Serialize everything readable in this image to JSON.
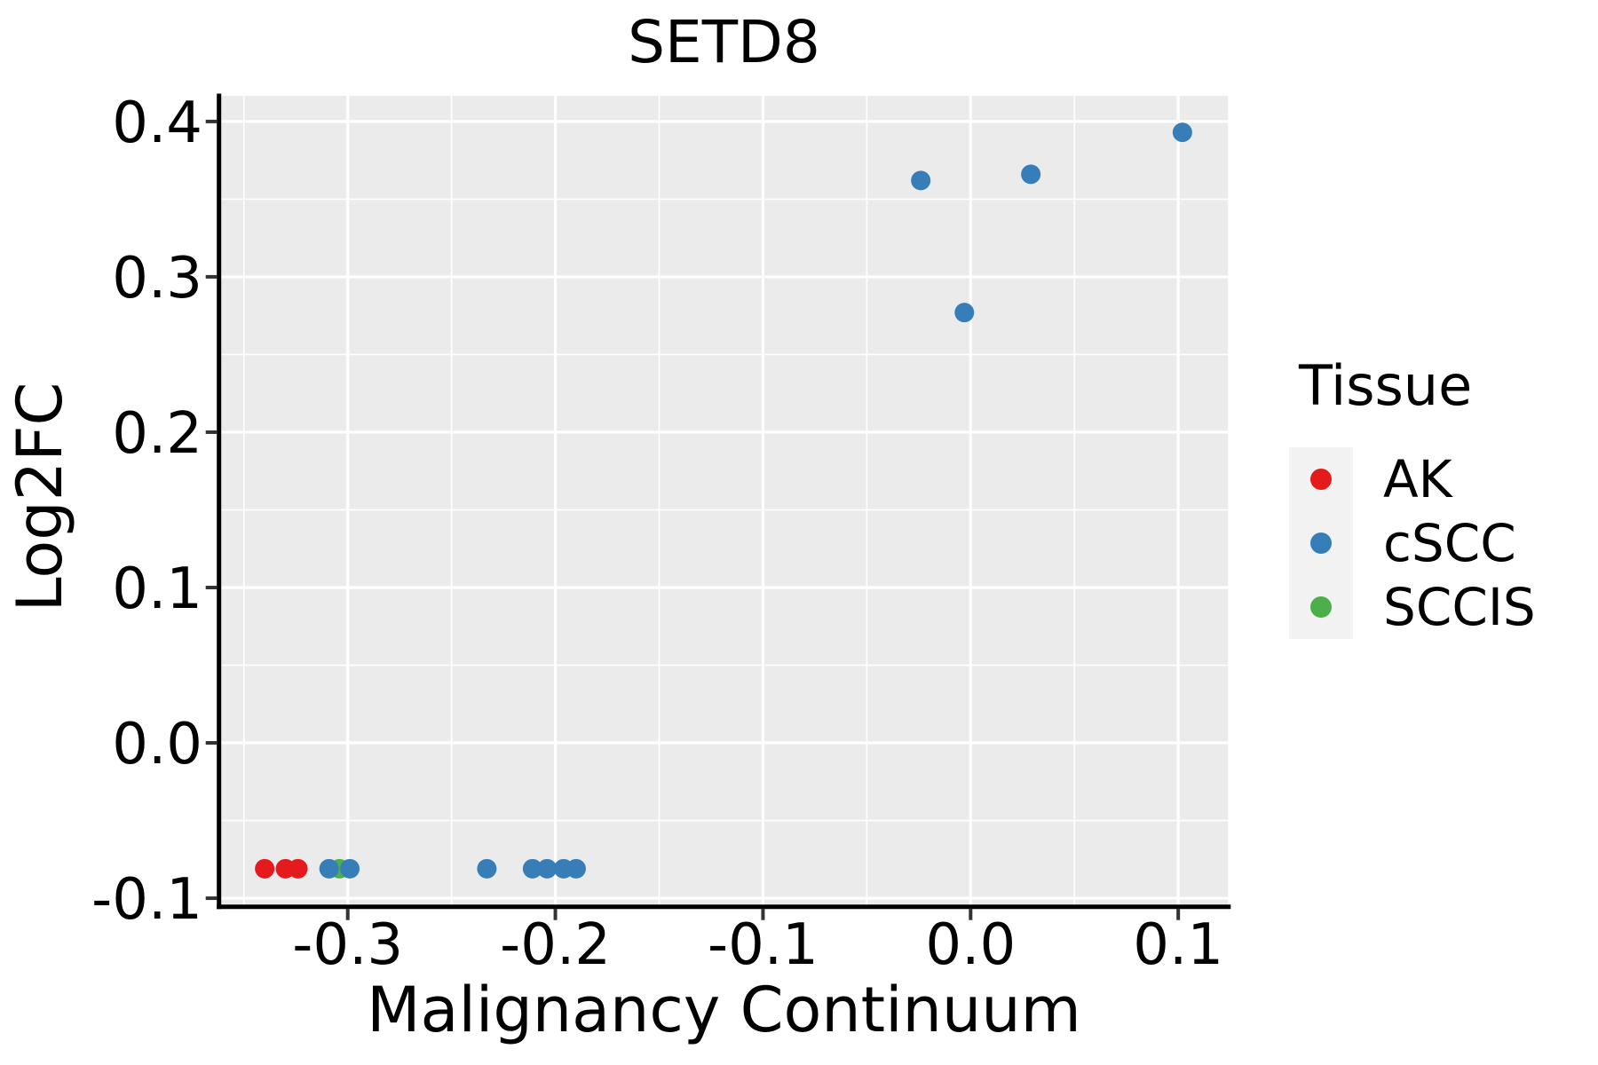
{
  "title": "SETD8",
  "axes": {
    "x": {
      "label": "Malignancy Continuum",
      "tick_values": [
        -0.3,
        -0.2,
        -0.1,
        0.0,
        0.1
      ],
      "tick_labels": [
        "-0.3",
        "-0.2",
        "-0.1",
        "0.0",
        "0.1"
      ],
      "minor_tick_values": [
        -0.35,
        -0.25,
        -0.15,
        -0.05,
        0.05
      ]
    },
    "y": {
      "label": "Log2FC",
      "tick_values": [
        0.4,
        0.3,
        0.2,
        0.1,
        0.0,
        -0.1
      ],
      "tick_labels": [
        "0.4",
        "0.3",
        "0.2",
        "0.1",
        "0.0",
        "-0.1"
      ],
      "minor_tick_values": [
        0.35,
        0.25,
        0.15,
        0.05,
        -0.05
      ]
    }
  },
  "legend": {
    "title": "Tissue",
    "items": [
      {
        "label": "AK",
        "color": "#E41A1C"
      },
      {
        "label": "cSCC",
        "color": "#377EB8"
      },
      {
        "label": "SCCIS",
        "color": "#4DAF4A"
      }
    ]
  },
  "colors": {
    "panel_bg": "#EBEBEB",
    "grid": "#FFFFFF",
    "spine": "#000000",
    "tick_mark": "#333333",
    "tick_text": "#000000",
    "legend_key_bg": "#F2F2F2",
    "ak_red": "#E41A1C",
    "cscc_blue": "#377EB8",
    "sccis_green": "#4DAF4A"
  },
  "chart_data": {
    "type": "scatter",
    "title": "SETD8",
    "xlabel": "Malignancy Continuum",
    "ylabel": "Log2FC",
    "xlim": [
      -0.362,
      0.124
    ],
    "ylim": [
      -0.1055,
      0.4165
    ],
    "grid": "on",
    "legend_title": "Tissue",
    "legend_position": "right",
    "series": [
      {
        "name": "AK",
        "color": "#E41A1C",
        "points": [
          [
            -0.34,
            -0.081
          ],
          [
            -0.33,
            -0.081
          ],
          [
            -0.324,
            -0.081
          ]
        ]
      },
      {
        "name": "SCCIS",
        "color": "#4DAF4A",
        "points": [
          [
            -0.304,
            -0.081
          ]
        ]
      },
      {
        "name": "cSCC",
        "color": "#377EB8",
        "points": [
          [
            -0.309,
            -0.081
          ],
          [
            -0.299,
            -0.081
          ],
          [
            -0.233,
            -0.081
          ],
          [
            -0.211,
            -0.081
          ],
          [
            -0.204,
            -0.081
          ],
          [
            -0.196,
            -0.081
          ],
          [
            -0.19,
            -0.081
          ],
          [
            -0.024,
            0.362
          ],
          [
            -0.003,
            0.277
          ],
          [
            0.029,
            0.366
          ],
          [
            0.102,
            0.393
          ]
        ]
      }
    ]
  }
}
